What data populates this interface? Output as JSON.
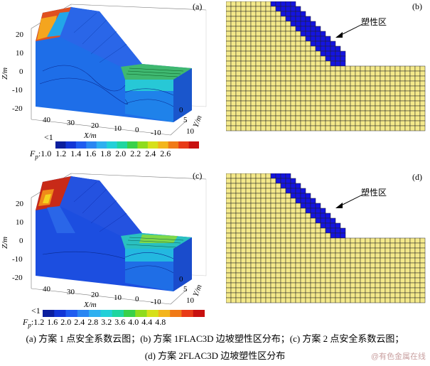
{
  "panels": {
    "a": {
      "tag": "(a)",
      "axes": {
        "z_label": "Z/m",
        "x_label": "X/m",
        "y_label": "Y/m",
        "z_ticks": [
          "20",
          "10",
          "0",
          "-10",
          "-20"
        ],
        "x_ticks": [
          "40",
          "30",
          "20",
          "10",
          "0",
          "-10"
        ],
        "y_ticks": [
          "0",
          "5",
          "10"
        ]
      },
      "legend": {
        "prefix_letter": "F",
        "prefix_sub": "p",
        "prefix_colon": ":",
        "under_label": "<1",
        "ticks": [
          "1.0",
          "1.2",
          "1.4",
          "1.6",
          "1.8",
          "2.0",
          "2.2",
          "2.4",
          "2.6"
        ],
        "colors": [
          "#0b1f9e",
          "#1236d6",
          "#1f5cf0",
          "#2a86f2",
          "#2fb0f0",
          "#23d0d8",
          "#1fd6a0",
          "#39d14a",
          "#8fdc1e",
          "#d6e01a",
          "#f3b51b",
          "#f07a17",
          "#e83a17",
          "#c8100f"
        ]
      }
    },
    "b": {
      "tag": "(b)",
      "annotation": "塑性区"
    },
    "c": {
      "tag": "(c)",
      "axes": {
        "z_label": "Z/m",
        "x_label": "X/m",
        "y_label": "Y/m",
        "z_ticks": [
          "20",
          "10",
          "0",
          "-10",
          "-20"
        ],
        "x_ticks": [
          "40",
          "30",
          "20",
          "10",
          "0",
          "-10"
        ],
        "y_ticks": [
          "0",
          "5",
          "10"
        ]
      },
      "legend": {
        "prefix_letter": "F",
        "prefix_sub": "p",
        "prefix_colon": ":",
        "under_label": "<1",
        "ticks": [
          "1.2",
          "1.6",
          "2.0",
          "2.4",
          "2.8",
          "3.2",
          "3.6",
          "4.0",
          "4.4",
          "4.8"
        ],
        "colors": [
          "#0b1f9e",
          "#1236d6",
          "#1f5cf0",
          "#2a86f2",
          "#2fb0f0",
          "#23d0d8",
          "#1fd6a0",
          "#39d14a",
          "#8fdc1e",
          "#d6e01a",
          "#f3b51b",
          "#f07a17",
          "#e83a17",
          "#c8100f"
        ]
      }
    },
    "d": {
      "tag": "(d)",
      "annotation": "塑性区"
    }
  },
  "caption": {
    "line1": "(a) 方案 1 点安全系数云图；(b) 方案 1FLAC3D 边坡塑性区分布；(c) 方案 2 点安全系数云图；",
    "line2": "(d) 方案 2FLAC3D 边坡塑性区分布"
  },
  "watermark": "@有色金属在线",
  "colors": {
    "mesh_fill": "#f4e98a",
    "plastic_fill": "#1414e0",
    "mesh_line": "#222222"
  }
}
